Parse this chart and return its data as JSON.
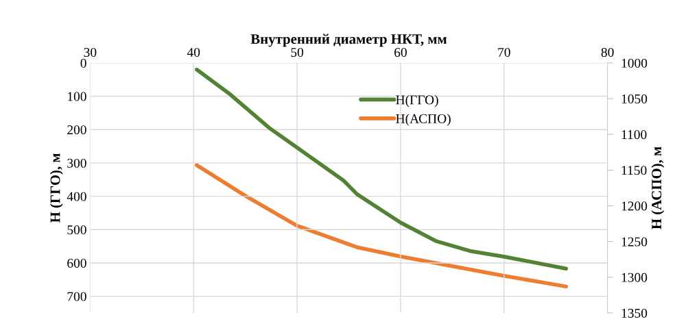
{
  "chart_data": {
    "type": "line",
    "xlabel": "Внутренний диаметр НКТ, мм",
    "ylabel": "H (ГГО), м",
    "y2label": "H (АСПО), м",
    "xlim": [
      30,
      80
    ],
    "xticks": [
      30,
      40,
      50,
      60,
      70,
      80
    ],
    "ylim": [
      750,
      0
    ],
    "yticks": [
      0,
      100,
      200,
      300,
      400,
      500,
      600,
      700
    ],
    "y2lim": [
      1350,
      1000
    ],
    "y2ticks": [
      1000,
      1050,
      1100,
      1150,
      1200,
      1250,
      1300,
      1350
    ],
    "grid": true,
    "legend": "top",
    "marker": "none",
    "line_style": "solid",
    "series": [
      {
        "name": "H(ГГО)",
        "color": "#548235",
        "x": [
          40.3,
          43.4,
          47.4,
          50.0,
          54.5,
          55.8,
          60.0,
          63.4,
          66.7,
          70.0,
          76.0
        ],
        "values": [
          20,
          91,
          197,
          254,
          353,
          394,
          479,
          534,
          564,
          581,
          617
        ]
      },
      {
        "name": "H(АСПО)",
        "color": "#ed7d31",
        "axis": "y2",
        "x": [
          40.3,
          45.0,
          50.0,
          55.8,
          60.0,
          70.0,
          76.0
        ],
        "values": [
          1143,
          1186,
          1228,
          1258,
          1271,
          1298,
          1313
        ]
      }
    ]
  }
}
